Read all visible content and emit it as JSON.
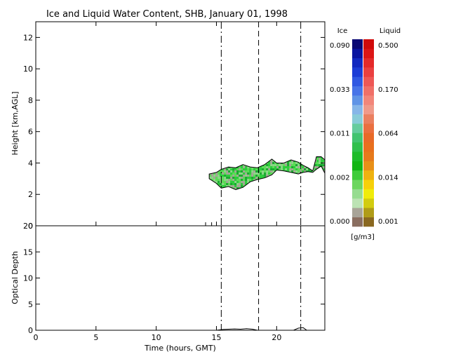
{
  "chart_data": [
    {
      "type": "heatmap",
      "title": "Ice and Liquid Water Content, SHB, January 01, 1998",
      "ylabel": "Height [km,AGL]",
      "xlim": [
        0,
        24
      ],
      "ylim": [
        0,
        13
      ],
      "y_ticks": [
        0,
        2,
        4,
        6,
        8,
        10,
        12
      ],
      "x_ticks": [
        0,
        5,
        10,
        15,
        20
      ],
      "vertical_lines": [
        {
          "x": 15.4,
          "style": "dash-dot"
        },
        {
          "x": 18.5,
          "style": "dashed"
        },
        {
          "x": 22.0,
          "style": "dash-dot"
        }
      ],
      "cloud_layer": {
        "x_range": [
          14.4,
          24.0
        ],
        "outline_color": "#000000",
        "top": [
          [
            14.4,
            3.3
          ],
          [
            15.0,
            3.4
          ],
          [
            15.4,
            3.6
          ],
          [
            16.0,
            3.75
          ],
          [
            16.6,
            3.7
          ],
          [
            17.2,
            3.9
          ],
          [
            17.8,
            3.75
          ],
          [
            18.4,
            3.7
          ],
          [
            19.0,
            3.9
          ],
          [
            19.6,
            4.25
          ],
          [
            20.0,
            4.0
          ],
          [
            20.6,
            4.0
          ],
          [
            21.2,
            4.2
          ],
          [
            21.8,
            4.05
          ],
          [
            22.2,
            3.85
          ],
          [
            22.6,
            3.7
          ],
          [
            23.0,
            3.5
          ],
          [
            23.3,
            4.4
          ],
          [
            23.7,
            4.4
          ],
          [
            24.0,
            4.2
          ]
        ],
        "base": [
          [
            14.4,
            3.0
          ],
          [
            15.0,
            2.7
          ],
          [
            15.4,
            2.4
          ],
          [
            16.0,
            2.5
          ],
          [
            16.6,
            2.3
          ],
          [
            17.2,
            2.45
          ],
          [
            17.8,
            2.8
          ],
          [
            18.4,
            2.95
          ],
          [
            19.0,
            3.05
          ],
          [
            19.6,
            3.25
          ],
          [
            20.0,
            3.55
          ],
          [
            20.6,
            3.5
          ],
          [
            21.2,
            3.4
          ],
          [
            21.8,
            3.3
          ],
          [
            22.2,
            3.4
          ],
          [
            22.6,
            3.45
          ],
          [
            23.0,
            3.4
          ],
          [
            23.3,
            3.6
          ],
          [
            23.7,
            3.8
          ],
          [
            24.0,
            3.35
          ]
        ],
        "dominant_colors": [
          "#2ccd3c",
          "#5ddc58",
          "#a8a498",
          "#8fd68a",
          "#1aa830"
        ]
      },
      "colorbar": {
        "ice_label": "Ice",
        "liquid_label": "Liquid",
        "units": "[g/m3]",
        "ice_tick_labels": [
          "0.090",
          "0.033",
          "0.011",
          "0.002",
          "0.000"
        ],
        "liquid_tick_labels": [
          "0.500",
          "0.170",
          "0.064",
          "0.014",
          "0.001"
        ],
        "ice_colors": [
          "#8a6e60",
          "#a8a498",
          "#bce3b4",
          "#96dc90",
          "#6cd65e",
          "#3fcc3a",
          "#12b514",
          "#1dbc2a",
          "#2fc04c",
          "#42c470",
          "#66cc9e",
          "#88cbd8",
          "#86b6e8",
          "#6094e6",
          "#4874e8",
          "#3058e2",
          "#1c3cd6",
          "#1228c0",
          "#0a14a0",
          "#0a0874"
        ],
        "liquid_colors": [
          "#8a6820",
          "#b09c18",
          "#d2cc10",
          "#f0ec0a",
          "#f6d00a",
          "#eeb210",
          "#e89018",
          "#e67a1c",
          "#e8701e",
          "#e86a28",
          "#ea7040",
          "#ea8060",
          "#f09a8a",
          "#f2867a",
          "#f07068",
          "#ee5856",
          "#ea4040",
          "#e42a2a",
          "#dc1616",
          "#d00a0a"
        ]
      }
    },
    {
      "type": "line",
      "ylabel": "Optical Depth",
      "xlabel": "Time (hours, GMT)",
      "xlim": [
        0,
        24
      ],
      "ylim": [
        0,
        20
      ],
      "y_ticks": [
        0,
        5,
        10,
        15,
        20
      ],
      "x_ticks": [
        0,
        5,
        10,
        15,
        20
      ],
      "series": [
        {
          "x": [
            15.0,
            15.5,
            16.0,
            16.5,
            17.0,
            17.5,
            18.0,
            18.4,
            21.4,
            21.8,
            22.2,
            22.5
          ],
          "y": [
            0,
            0.15,
            0.2,
            0.25,
            0.2,
            0.3,
            0.2,
            0,
            0,
            0.4,
            0.5,
            0
          ]
        }
      ]
    }
  ]
}
